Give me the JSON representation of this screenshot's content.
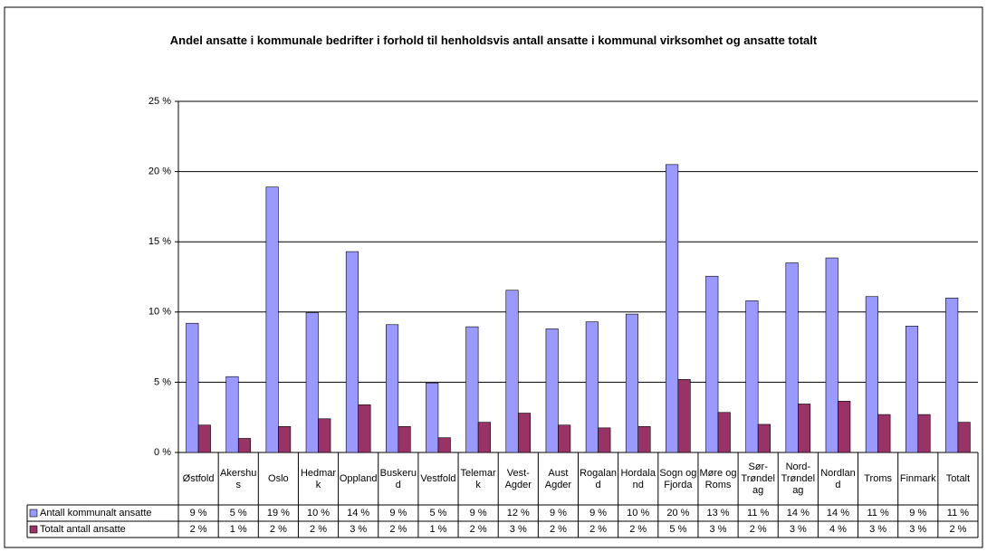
{
  "chart_data": {
    "type": "bar",
    "title": "Andel ansatte i kommunale bedrifter i forhold til henholdsvis antall ansatte i kommunal virksomhet og ansatte totalt",
    "categories": [
      "Østfold",
      "Akershus",
      "Oslo",
      "Hedmark",
      "Oppland",
      "Buskerud",
      "Vestfold",
      "Telemark",
      "Vest-Agder",
      "Aust Agder",
      "Rogaland",
      "Hordaland",
      "Sogn og Fjorda",
      "Møre og Roms",
      "Sør-Trøndelag",
      "Nord-Trøndelag",
      "Nordland",
      "Troms",
      "Finmark",
      "Totalt"
    ],
    "series": [
      {
        "name": "Antall kommunalt ansatte",
        "color": "#9999ff",
        "values": [
          9.2,
          5.4,
          18.9,
          9.95,
          14.3,
          9.1,
          4.95,
          8.95,
          11.55,
          8.8,
          9.3,
          9.85,
          20.5,
          12.55,
          10.8,
          13.5,
          13.85,
          11.1,
          9.0,
          11.0
        ],
        "value_labels": [
          "9 %",
          "5 %",
          "19 %",
          "10 %",
          "14 %",
          "9 %",
          "5 %",
          "9 %",
          "12 %",
          "9 %",
          "9 %",
          "10 %",
          "20 %",
          "13 %",
          "11 %",
          "14 %",
          "14 %",
          "11 %",
          "9 %",
          "11 %"
        ]
      },
      {
        "name": "Totalt antall ansatte",
        "color": "#993366",
        "values": [
          1.95,
          1.0,
          1.85,
          2.4,
          3.4,
          1.85,
          1.05,
          2.15,
          2.8,
          1.95,
          1.75,
          1.85,
          5.2,
          2.85,
          2.0,
          3.45,
          3.65,
          2.7,
          2.7,
          2.15
        ],
        "value_labels": [
          "2 %",
          "1 %",
          "2 %",
          "2 %",
          "3 %",
          "2 %",
          "1 %",
          "2 %",
          "3 %",
          "2 %",
          "2 %",
          "2 %",
          "5 %",
          "3 %",
          "2 %",
          "3 %",
          "4 %",
          "3 %",
          "3 %",
          "2 %"
        ]
      }
    ],
    "ylim": [
      0,
      25
    ],
    "yticks": [
      {
        "value": 0,
        "label": "0 %"
      },
      {
        "value": 5,
        "label": "5 %"
      },
      {
        "value": 10,
        "label": "10 %"
      },
      {
        "value": 15,
        "label": "15 %"
      },
      {
        "value": 20,
        "label": "20 %"
      },
      {
        "value": 25,
        "label": "25 %"
      }
    ],
    "grid": true
  }
}
